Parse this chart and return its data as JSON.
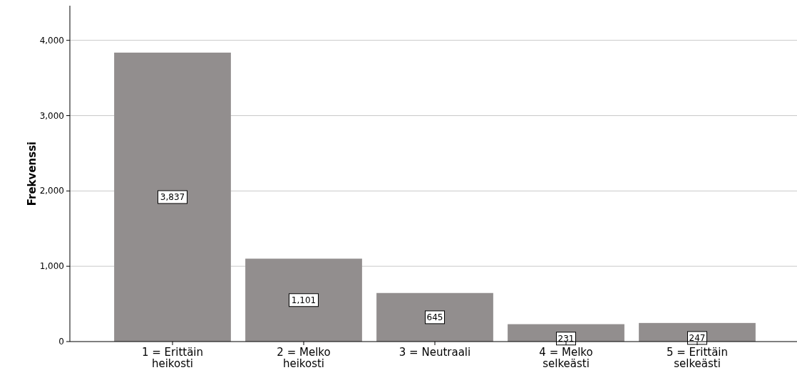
{
  "chart_data": {
    "type": "bar",
    "ylabel": "Frekvenssi",
    "categories": [
      "1 = Erittäin heikosti",
      "2 = Melko heikosti",
      "3 = Neutraali",
      "4 = Melko selkeästi",
      "5 = Erittäin selkeästi"
    ],
    "values": [
      3837,
      1101,
      645,
      231,
      247
    ],
    "value_labels": [
      "3,837",
      "1,101",
      "645",
      "231",
      "247"
    ],
    "color": "#928e8e",
    "ylim": [
      0,
      4460
    ],
    "yticks": [
      {
        "value": 0,
        "label": "0"
      },
      {
        "value": 1000,
        "label": "1,000"
      },
      {
        "value": 2000,
        "label": "2,000"
      },
      {
        "value": 3000,
        "label": "3,000"
      },
      {
        "value": 4000,
        "label": "4,000"
      }
    ],
    "grid": "y"
  }
}
